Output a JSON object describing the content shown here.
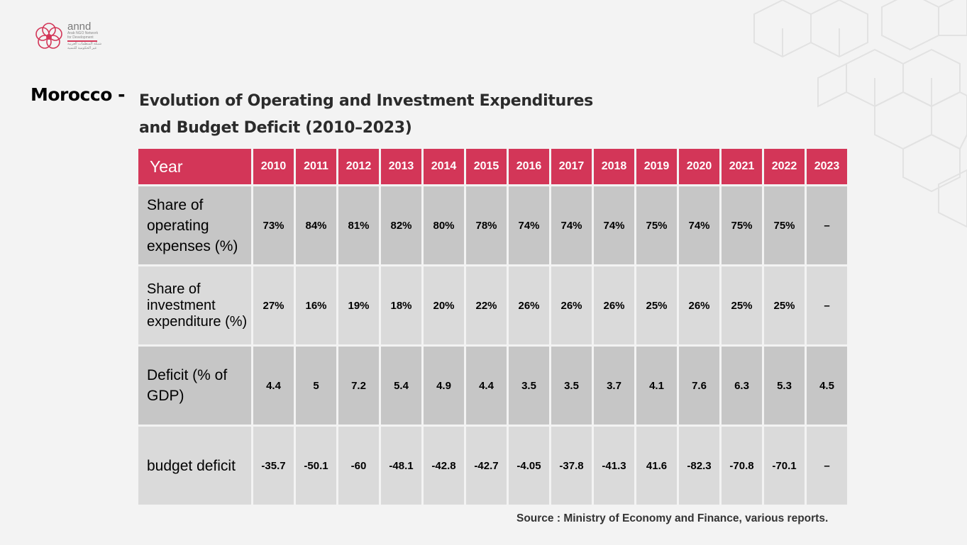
{
  "brand": {
    "name": "annd",
    "subtitle_lines": [
      "Arab NGO Network",
      "for Development"
    ],
    "arabic_lines": [
      "شبكة المنظمات العربية",
      "غير الحكومية للتنمية"
    ],
    "accent_color": "#d33658"
  },
  "heading": {
    "country": "Morocco -",
    "title_line1": "Evolution of Operating and Investment Expenditures",
    "title_line2": "and Budget Deficit (2010–2023)"
  },
  "table": {
    "header_label": "Year",
    "years": [
      "2010",
      "2011",
      "2012",
      "2013",
      "2014",
      "2015",
      "2016",
      "2017",
      "2018",
      "2019",
      "2020",
      "2021",
      "2022",
      "2023"
    ],
    "rows": [
      {
        "label": "Share of operating expenses (%)",
        "values": [
          "73%",
          "84%",
          "81%",
          "82%",
          "80%",
          "78%",
          "74%",
          "74%",
          "74%",
          "75%",
          "74%",
          "75%",
          "75%",
          "–"
        ]
      },
      {
        "label": "Share of investment expenditure (%)",
        "values": [
          "27%",
          "16%",
          "19%",
          "18%",
          "20%",
          "22%",
          "26%",
          "26%",
          "26%",
          "25%",
          "26%",
          "25%",
          "25%",
          "–"
        ]
      },
      {
        "label": "Deficit (% of GDP)",
        "values": [
          "4.4",
          "5",
          "7.2",
          "5.4",
          "4.9",
          "4.4",
          "3.5",
          "3.5",
          "3.7",
          "4.1",
          "7.6",
          "6.3",
          "5.3",
          "4.5"
        ]
      },
      {
        "label": "budget deficit",
        "values": [
          "-35.7",
          "-50.1",
          "-60",
          "-48.1",
          "-42.8",
          "-42.7",
          "-4.05",
          "-37.8",
          "-41.3",
          "41.6",
          "-82.3",
          "-70.8",
          "-70.1",
          "–"
        ]
      }
    ],
    "header_color": "#d33658",
    "row_colors": [
      "#c6c6c6",
      "#dadada"
    ]
  },
  "source": "Source : Ministry of Economy and Finance, various reports."
}
